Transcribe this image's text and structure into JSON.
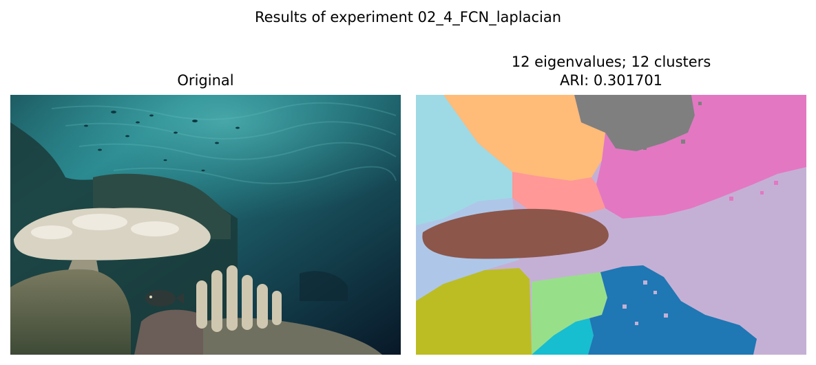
{
  "figure": {
    "title": "Results of experiment 02_4_FCN_laplacian"
  },
  "panels": {
    "original": {
      "title": "Original",
      "scene": "underwater coral reef photograph"
    },
    "segmentation": {
      "title_line1": "12 eigenvalues; 12 clusters",
      "title_line2": "ARI: 0.301701",
      "eigenvalues": 12,
      "clusters": 12,
      "ari": 0.301701
    }
  },
  "palette": {
    "orange": "#ffbb78",
    "gray": "#7f7f7f",
    "pink": "#e377c2",
    "light_cyan": "#9edae5",
    "light_pink": "#ff9896",
    "lavender": "#c5b0d5",
    "light_blue": "#aec7e8",
    "brown": "#8c564b",
    "olive": "#bcbd22",
    "light_green": "#98df8a",
    "cyan": "#17becf",
    "blue": "#1f77b4"
  }
}
